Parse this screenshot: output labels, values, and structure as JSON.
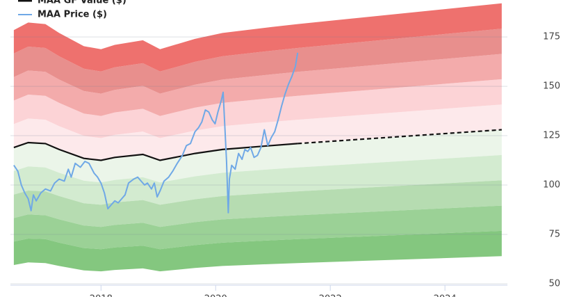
{
  "chart_data": {
    "type": "line",
    "xlim": [
      2016.42,
      2025.09
    ],
    "xticks": [
      2018,
      2020,
      2022,
      2024
    ],
    "ylim": [
      50,
      193.7
    ],
    "yticks": [
      50,
      75,
      100,
      125,
      150,
      175
    ],
    "grid": true,
    "legend": "top-left",
    "x": [
      2016.48,
      2016.73,
      2017.03,
      2017.27,
      2017.7,
      2018.0,
      2018.24,
      2018.73,
      2019.03,
      2019.64,
      2020.12,
      2020.97,
      2021.43,
      2024.99
    ],
    "upper_bands": {
      "colors": [
        "#fde9eb",
        "#fcd3d6",
        "#f3abab",
        "#e88f8d",
        "#ee716e"
      ],
      "lines": [
        [
          130.9,
          133.7,
          133.1,
          129.8,
          124.9,
          123.8,
          125.4,
          127.1,
          123.8,
          127.6,
          129.8,
          132,
          133.1,
          140.8
        ],
        [
          142.8,
          145.8,
          145.2,
          141.6,
          136.2,
          135,
          136.8,
          138.6,
          135,
          139.2,
          141.6,
          144,
          145.2,
          153.6
        ],
        [
          154.7,
          158,
          157.3,
          153.4,
          147.6,
          146.3,
          148.2,
          150.2,
          146.3,
          150.8,
          153.4,
          156,
          157.3,
          166.4
        ],
        [
          166.6,
          170.1,
          169.4,
          165.2,
          158.9,
          157.5,
          159.6,
          161.7,
          157.5,
          162.4,
          165.2,
          168,
          169.4,
          179.2
        ],
        [
          178.5,
          182.3,
          181.5,
          177,
          170.3,
          168.8,
          171,
          173.3,
          168.8,
          174,
          177,
          180,
          181.5,
          192
        ]
      ]
    },
    "lower_bands": {
      "colors": [
        "#ebf5e9",
        "#d3ebd0",
        "#b6dcb1",
        "#9bd196",
        "#84c77f"
      ],
      "lines": [
        [
          107.1,
          109.4,
          108.9,
          106.2,
          102.2,
          101.3,
          102.6,
          104,
          101.3,
          104.4,
          106.2,
          108,
          108.9,
          115.2
        ],
        [
          95.2,
          97.2,
          96.8,
          94.4,
          90.8,
          90,
          91.2,
          92.4,
          90,
          92.8,
          94.4,
          96,
          96.8,
          102.4
        ],
        [
          83.3,
          85.1,
          84.7,
          82.6,
          79.5,
          78.8,
          79.8,
          80.9,
          78.8,
          81.2,
          82.6,
          84,
          84.7,
          89.6
        ],
        [
          71.4,
          72.9,
          72.6,
          70.8,
          68.1,
          67.5,
          68.4,
          69.3,
          67.5,
          69.6,
          70.8,
          72,
          72.6,
          76.8
        ],
        [
          59.5,
          60.8,
          60.5,
          59,
          56.8,
          56.3,
          57,
          57.8,
          56.3,
          58,
          59,
          60,
          60.5,
          64
        ]
      ]
    },
    "series": [
      {
        "name": "MAA GF Value ($)",
        "color": "#111111",
        "dashed_after": 2021.43,
        "values": [
          119,
          121.5,
          121,
          118,
          113.5,
          112.5,
          114,
          115.5,
          112.5,
          116,
          118,
          120,
          121,
          128
        ]
      },
      {
        "name": "MAA Price ($)",
        "color": "#6fa8e6",
        "x": [
          2016.48,
          2016.55,
          2016.61,
          2016.67,
          2016.73,
          2016.78,
          2016.82,
          2016.87,
          2016.95,
          2017.03,
          2017.12,
          2017.19,
          2017.27,
          2017.36,
          2017.43,
          2017.48,
          2017.55,
          2017.64,
          2017.72,
          2017.79,
          2017.88,
          2017.94,
          2018.0,
          2018.06,
          2018.12,
          2018.18,
          2018.24,
          2018.3,
          2018.36,
          2018.42,
          2018.48,
          2018.57,
          2018.64,
          2018.7,
          2018.76,
          2018.81,
          2018.88,
          2018.93,
          2018.98,
          2019.03,
          2019.1,
          2019.18,
          2019.25,
          2019.33,
          2019.42,
          2019.49,
          2019.56,
          2019.64,
          2019.7,
          2019.76,
          2019.82,
          2019.88,
          2019.94,
          2019.99,
          2020.04,
          2020.1,
          2020.13,
          2020.16,
          2020.19,
          2020.22,
          2020.24,
          2020.28,
          2020.34,
          2020.4,
          2020.46,
          2020.51,
          2020.56,
          2020.61,
          2020.67,
          2020.73,
          2020.79,
          2020.85,
          2020.91,
          2020.97,
          2021.03,
          2021.09,
          2021.15,
          2021.21,
          2021.27,
          2021.33,
          2021.39,
          2021.43
        ],
        "values": [
          110,
          107,
          100,
          96,
          93,
          87,
          95,
          92,
          96,
          98,
          97,
          101,
          103,
          102,
          108,
          104,
          111,
          109,
          112,
          111,
          106,
          104,
          101,
          96,
          88,
          90,
          92,
          91,
          93,
          95,
          101,
          103,
          104,
          102,
          100,
          101,
          98,
          101,
          94,
          97,
          102,
          104,
          107,
          111,
          115,
          120,
          121,
          127,
          129,
          132,
          138,
          137,
          133,
          131,
          137,
          143,
          147,
          130,
          112,
          86,
          103,
          110,
          108,
          116,
          113,
          118,
          117,
          119,
          114,
          115,
          119,
          128,
          120,
          124,
          127,
          133,
          140,
          146,
          151,
          155,
          160,
          167
        ]
      }
    ]
  }
}
